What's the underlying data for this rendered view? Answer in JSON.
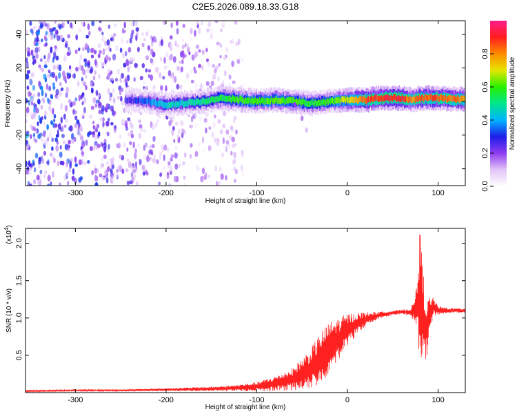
{
  "figure": {
    "title": "C2E5.2026.089.18.33.G18"
  },
  "chart_data": [
    {
      "type": "heatmap",
      "xlabel": "Height of straight line (km)",
      "ylabel": "Frequency (Hz)",
      "xlim": [
        -355,
        130
      ],
      "ylim": [
        -50,
        48
      ],
      "xticks": [
        -300,
        -200,
        -100,
        0,
        100
      ],
      "xtick_labels": [
        "-300",
        "-200",
        "-100",
        "0",
        "100"
      ],
      "yticks": [
        -40,
        -20,
        0,
        20,
        40
      ],
      "ytick_labels": [
        "-40",
        "-20",
        "0",
        "20",
        "40"
      ],
      "colorbar": {
        "label": "Normalized spectral amplitude",
        "range": [
          0,
          1
        ],
        "ticks": [
          0.0,
          0.2,
          0.4,
          0.6,
          0.8
        ],
        "tick_labels": [
          "0.0",
          "0.2",
          "0.4",
          "0.6",
          "0.8"
        ],
        "colormap": [
          "#ffffff",
          "#e2c4f8",
          "#8e3cf0",
          "#1e1ee8",
          "#00b4ff",
          "#00e68c",
          "#28f000",
          "#e6e600",
          "#ff8c00",
          "#ff1e1e",
          "#ff1e8c"
        ]
      },
      "noise_region_km": [
        -355,
        -115
      ],
      "ridge": {
        "x": [
          -245,
          -220,
          -200,
          -180,
          -160,
          -140,
          -120,
          -100,
          -80,
          -60,
          -40,
          -20,
          0,
          20,
          40,
          60,
          70,
          80,
          100,
          130
        ],
        "y": [
          1,
          0,
          -2,
          -1,
          0,
          2,
          1,
          0,
          1,
          0,
          -1,
          0,
          1,
          1,
          2,
          2,
          1,
          2,
          2,
          1
        ],
        "amplitude": [
          0.25,
          0.35,
          0.45,
          0.45,
          0.5,
          0.55,
          0.6,
          0.6,
          0.62,
          0.6,
          0.55,
          0.6,
          0.7,
          0.85,
          0.9,
          0.9,
          0.8,
          0.85,
          0.85,
          0.8
        ]
      },
      "spur": {
        "x": [
          -58,
          -50,
          -45
        ],
        "y": [
          -2,
          -10,
          -17
        ]
      }
    },
    {
      "type": "line",
      "xlabel": "Height of straight line (km)",
      "ylabel": "SNR (10 * v/v)",
      "y_exponent_label": "(x10",
      "y_exponent": "4",
      "y_exponent_close": ")",
      "xlim": [
        -355,
        130
      ],
      "ylim": [
        0,
        2.2
      ],
      "xticks": [
        -300,
        -200,
        -100,
        0,
        100
      ],
      "xtick_labels": [
        "-300",
        "-200",
        "-100",
        "0",
        "100"
      ],
      "yticks": [
        0.5,
        1.0,
        1.5,
        2.0
      ],
      "ytick_labels": [
        "0.5",
        "1.0",
        "1.5",
        "2.0"
      ],
      "color": "#ff2020",
      "series": [
        {
          "x": [
            -355,
            -300,
            -250,
            -200,
            -150,
            -125,
            -100,
            -80,
            -60,
            -50,
            -40,
            -30,
            -20,
            -10,
            0,
            10,
            20,
            30,
            40,
            50,
            60,
            70,
            75,
            78,
            80,
            82,
            85,
            88,
            90,
            95,
            100,
            110,
            120,
            130
          ],
          "y": [
            0.02,
            0.03,
            0.03,
            0.04,
            0.05,
            0.06,
            0.08,
            0.12,
            0.18,
            0.25,
            0.32,
            0.45,
            0.6,
            0.72,
            0.84,
            0.92,
            0.98,
            1.02,
            1.05,
            1.07,
            1.08,
            1.08,
            1.1,
            1.25,
            1.3,
            1.2,
            0.9,
            0.85,
            1.05,
            1.15,
            1.1,
            1.1,
            1.1,
            1.1
          ],
          "amplitude": [
            0.01,
            0.01,
            0.01,
            0.02,
            0.03,
            0.04,
            0.06,
            0.1,
            0.15,
            0.22,
            0.28,
            0.35,
            0.35,
            0.28,
            0.22,
            0.15,
            0.1,
            0.06,
            0.04,
            0.03,
            0.03,
            0.05,
            0.2,
            0.6,
            0.9,
            0.7,
            0.5,
            0.35,
            0.25,
            0.12,
            0.06,
            0.04,
            0.03,
            0.03
          ]
        }
      ]
    }
  ]
}
